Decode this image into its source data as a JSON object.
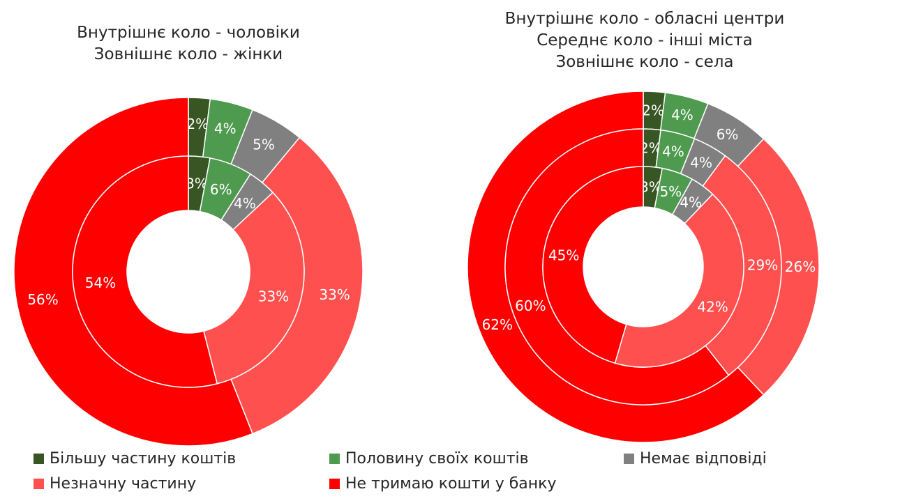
{
  "chart_data": [
    {
      "type": "pie",
      "variant": "nested-donut",
      "title_lines": [
        "Внутрішнє коло - чоловіки",
        "Зовнішнє коло - жінки"
      ],
      "categories": [
        "Більшу частину коштів",
        "Половину своїх коштів",
        "Немає відповіді",
        "Незначну частину",
        "Не тримаю кошти у банку"
      ],
      "series": [
        {
          "ring": "inner",
          "values": [
            3,
            6,
            4,
            33,
            54
          ],
          "labels": [
            "3%",
            "6%",
            "4%",
            "33%",
            "54%"
          ]
        },
        {
          "ring": "outer",
          "values": [
            2,
            4,
            5,
            33,
            56
          ],
          "labels": [
            "2%",
            "4%",
            "5%",
            "33%",
            "56%"
          ]
        }
      ]
    },
    {
      "type": "pie",
      "variant": "nested-donut",
      "title_lines": [
        "Внутрішнє коло - обласні центри",
        "Середнє коло - інші міста",
        "Зовнішнє коло - села"
      ],
      "categories": [
        "Більшу частину коштів",
        "Половину своїх коштів",
        "Немає відповіді",
        "Незначну частину",
        "Не тримаю кошти у банку"
      ],
      "series": [
        {
          "ring": "inner",
          "values": [
            3,
            5,
            4,
            42,
            45
          ],
          "labels": [
            "3%",
            "5%",
            "4%",
            "42%",
            "45%"
          ]
        },
        {
          "ring": "middle",
          "values": [
            2,
            4,
            4,
            29,
            60
          ],
          "labels": [
            "2%",
            "4%",
            "4%",
            "29%",
            "60%"
          ]
        },
        {
          "ring": "outer",
          "values": [
            2,
            4,
            6,
            26,
            62
          ],
          "labels": [
            "2%",
            "4%",
            "6%",
            "26%",
            "62%"
          ]
        }
      ]
    }
  ],
  "legend": {
    "items": [
      {
        "label": "Більшу частину коштів",
        "color": "#375623"
      },
      {
        "label": "Половину своїх коштів",
        "color": "#4E9A4E"
      },
      {
        "label": "Немає відповіді",
        "color": "#808080"
      },
      {
        "label": "Незначну частину",
        "color": "#FF5050"
      },
      {
        "label": "Не тримаю кошти у банку",
        "color": "#FF0000"
      }
    ]
  },
  "colors": [
    "#375623",
    "#4E9A4E",
    "#808080",
    "#FF5050",
    "#FF0000"
  ]
}
